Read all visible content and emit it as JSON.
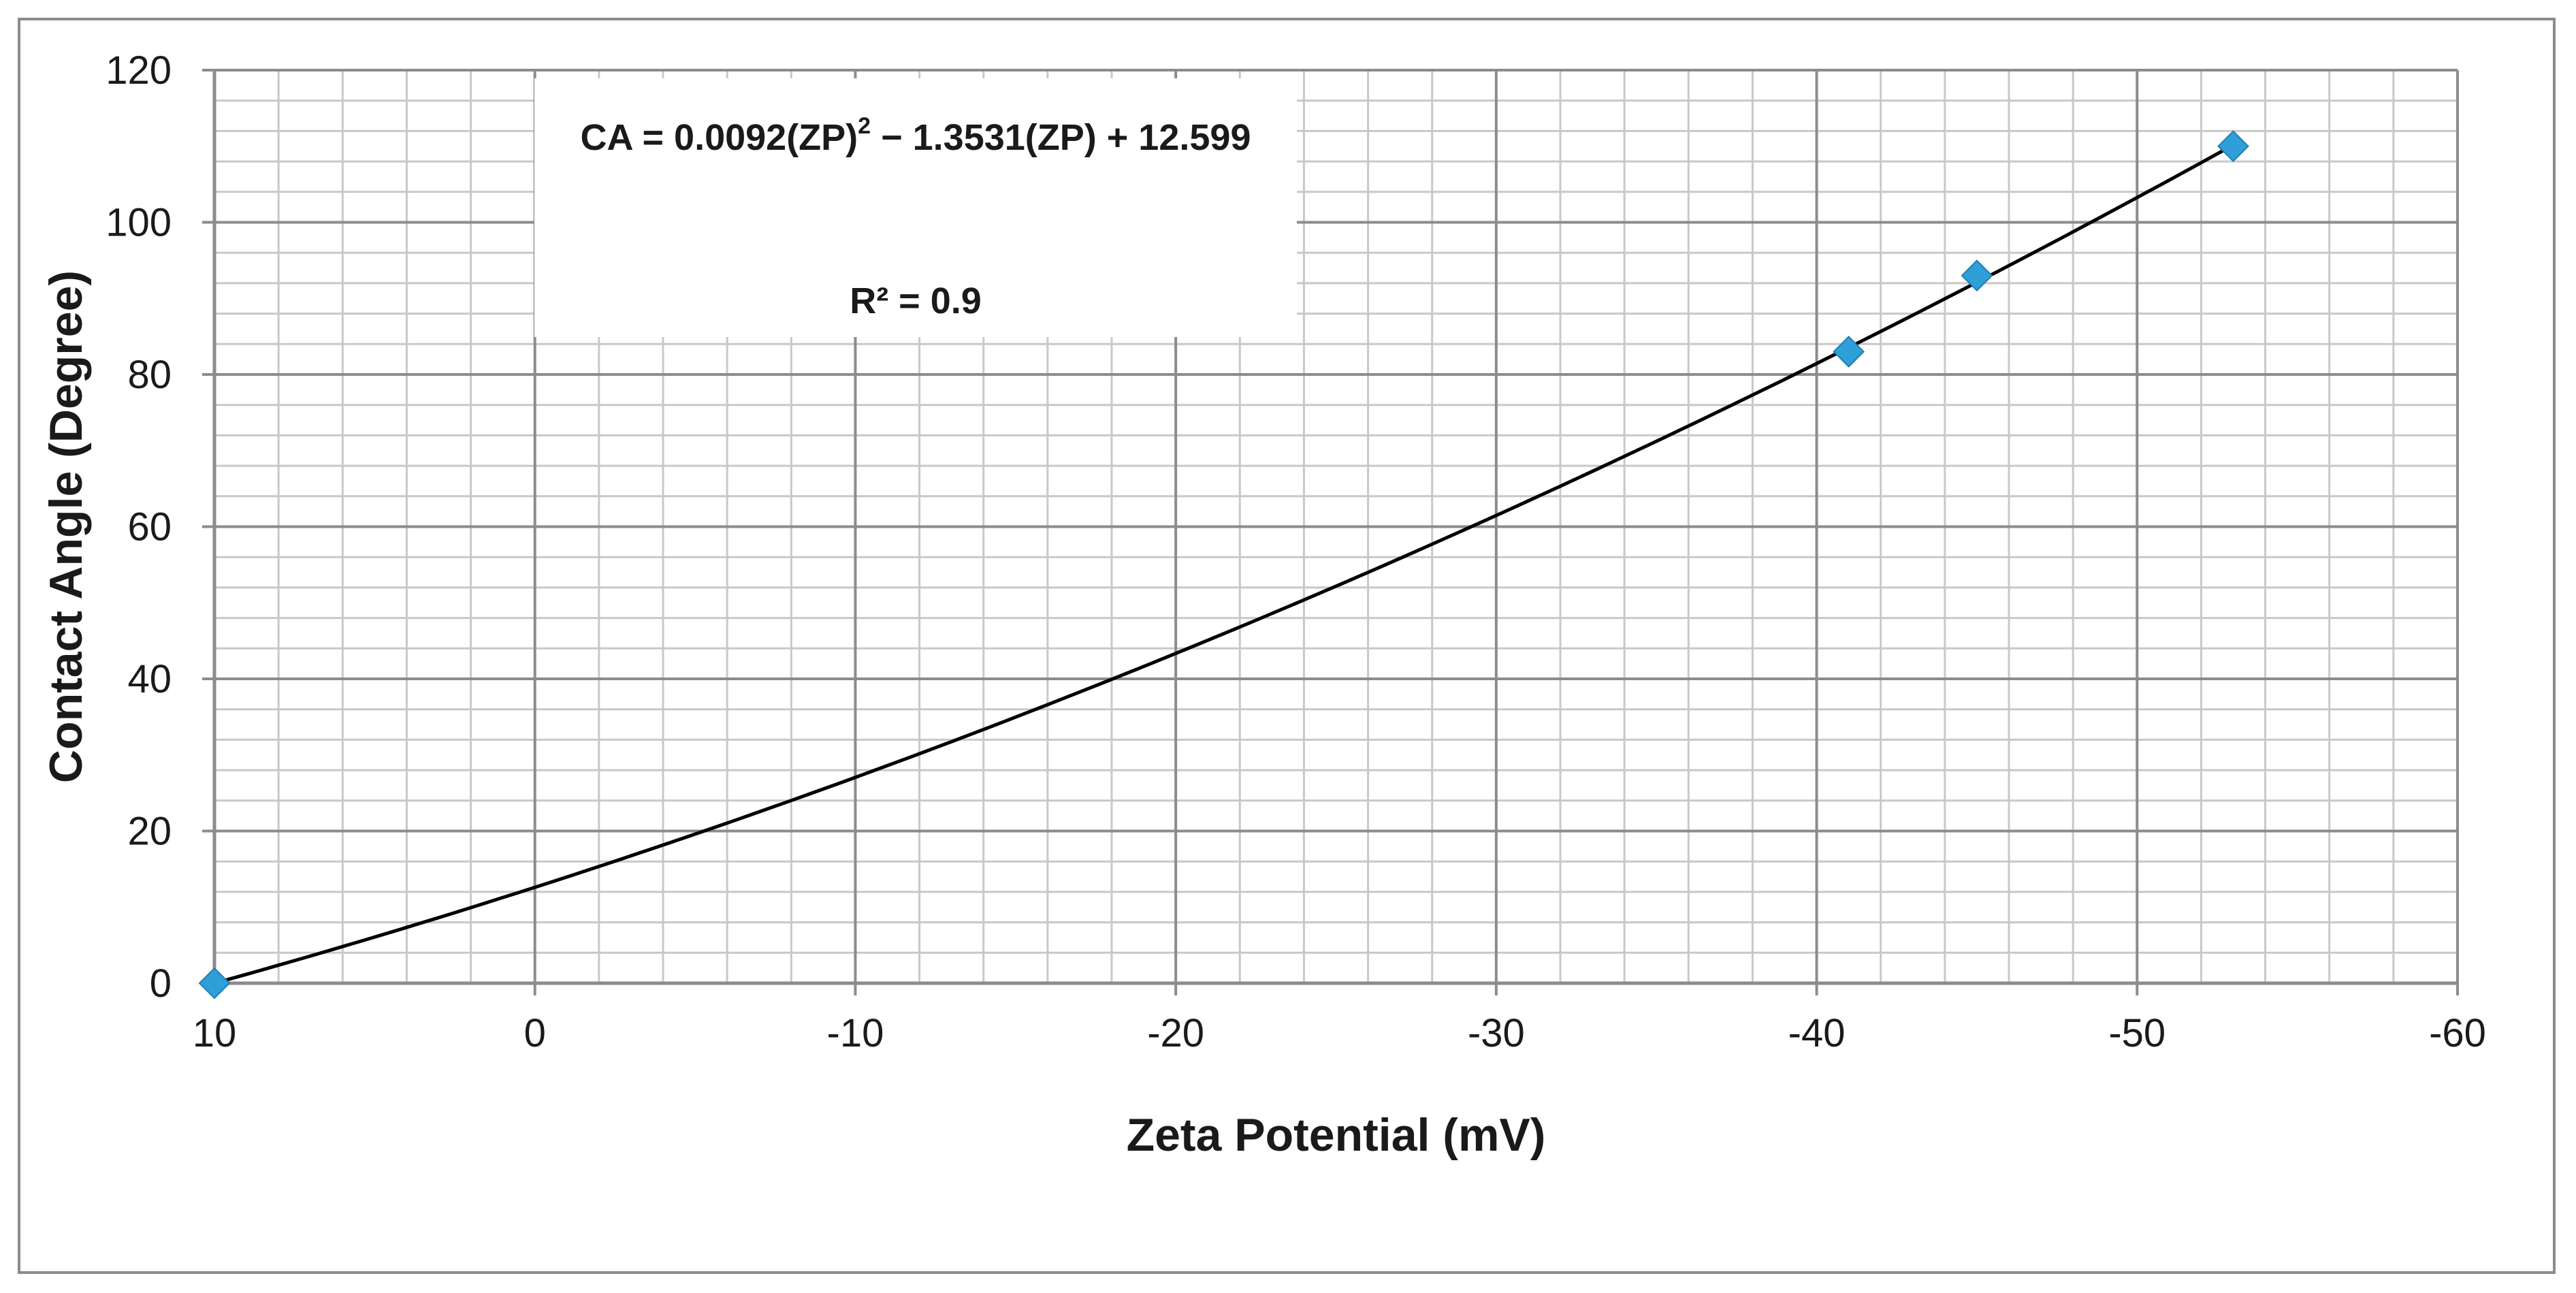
{
  "chart_data": {
    "type": "scatter",
    "title": "",
    "xlabel": "Zeta Potential (mV)",
    "ylabel": "Contact Angle (Degree)",
    "xlim": [
      10,
      -60
    ],
    "ylim": [
      0,
      120
    ],
    "x_reversed": true,
    "x_ticks": [
      10,
      0,
      -10,
      -20,
      -30,
      -40,
      -50,
      -60
    ],
    "y_ticks": [
      0,
      20,
      40,
      60,
      80,
      100,
      120
    ],
    "x_tick_labels": [
      "10",
      "0",
      "-10",
      "-20",
      "-30",
      "-40",
      "-50",
      "-60"
    ],
    "y_tick_labels": [
      "0",
      "20",
      "40",
      "60",
      "80",
      "100",
      "120"
    ],
    "grid": true,
    "minor_grid": true,
    "legend": "none",
    "series": [
      {
        "points": [
          {
            "x": 10,
            "y": 0
          },
          {
            "x": -41,
            "y": 83
          },
          {
            "x": -45,
            "y": 93
          },
          {
            "x": -53,
            "y": 110
          }
        ],
        "marker": "diamond",
        "color": "#2e9fd8"
      }
    ],
    "trendline": {
      "type": "polynomial",
      "order": 2,
      "coefficients": [
        0.0092,
        -1.3531,
        12.599
      ],
      "x_range": [
        10,
        -53
      ],
      "color": "#000000"
    },
    "annotation": {
      "equation_prefix": "CA = 0.0092(ZP)",
      "equation_exponent": "2",
      "equation_suffix": " − 1.3531(ZP) + 12.599",
      "r_squared_text": "R² = 0.9"
    },
    "colors": {
      "major_grid": "#8c8c8c",
      "minor_grid": "#c8c8c8",
      "marker": "#2e9fd8",
      "trendline": "#000000",
      "frame": "#8c8c8c"
    }
  }
}
